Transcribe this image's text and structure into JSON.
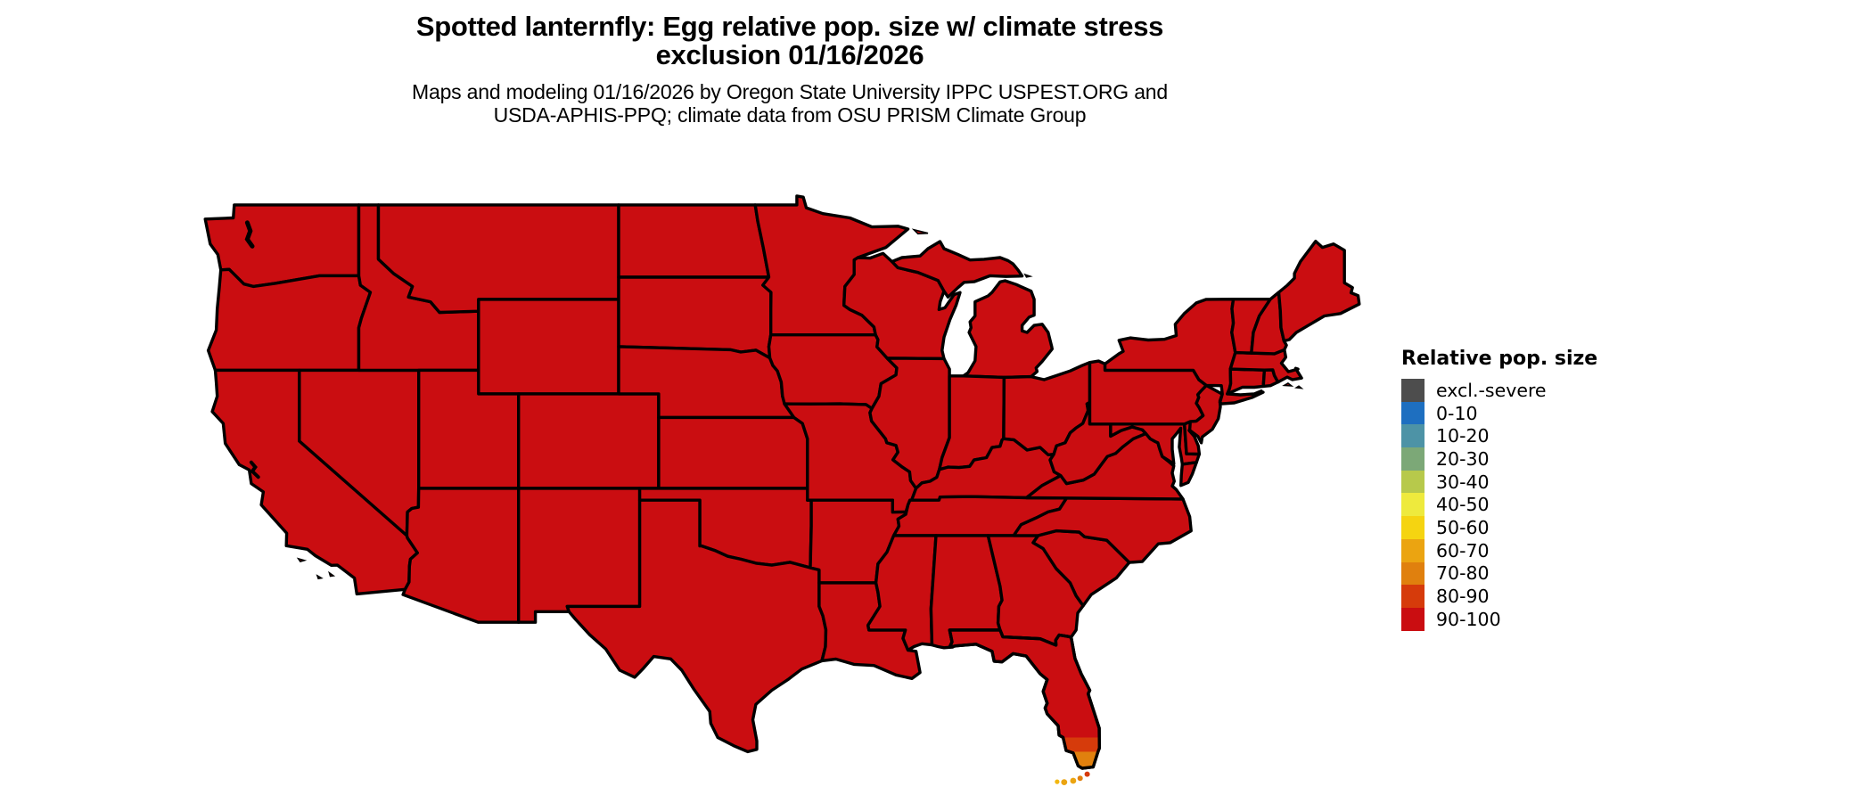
{
  "header": {
    "title_line1": "Spotted lanternfly: Egg relative pop. size w/ climate stress",
    "title_line2": "exclusion 01/16/2026",
    "subtitle_line1": "Maps and modeling 01/16/2026 by Oregon State University IPPC USPEST.ORG and",
    "subtitle_line2": "USDA-APHIS-PPQ; climate data from OSU PRISM Climate Group"
  },
  "legend": {
    "title": "Relative pop. size",
    "entries": [
      {
        "label": "excl.-severe",
        "color": "#4d4d4d"
      },
      {
        "label": "0-10",
        "color": "#1e6fc0"
      },
      {
        "label": "10-20",
        "color": "#4d93a6"
      },
      {
        "label": "20-30",
        "color": "#7ca877"
      },
      {
        "label": "30-40",
        "color": "#b7c94b"
      },
      {
        "label": "40-50",
        "color": "#eeea3d"
      },
      {
        "label": "50-60",
        "color": "#f5d411"
      },
      {
        "label": "60-70",
        "color": "#eba411"
      },
      {
        "label": "70-80",
        "color": "#e0800e"
      },
      {
        "label": "80-90",
        "color": "#d63b0b"
      },
      {
        "label": "90-100",
        "color": "#ca0d11"
      }
    ]
  },
  "chart_data": {
    "type": "choropleth-map",
    "region": "Contiguous United States",
    "title": "Spotted lanternfly: Egg relative pop. size w/ climate stress exclusion 01/16/2026",
    "legend_title": "Relative pop. size",
    "categories": [
      "excl.-severe",
      "0-10",
      "10-20",
      "20-30",
      "30-40",
      "40-50",
      "50-60",
      "60-70",
      "70-80",
      "80-90",
      "90-100"
    ],
    "dominant_category": "90-100",
    "local_variation": {
      "south_florida_tip": [
        "80-90",
        "70-80"
      ],
      "florida_keys": [
        "60-70",
        "50-60"
      ]
    },
    "boundary_color": "#000000",
    "background_color": "#ffffff"
  }
}
